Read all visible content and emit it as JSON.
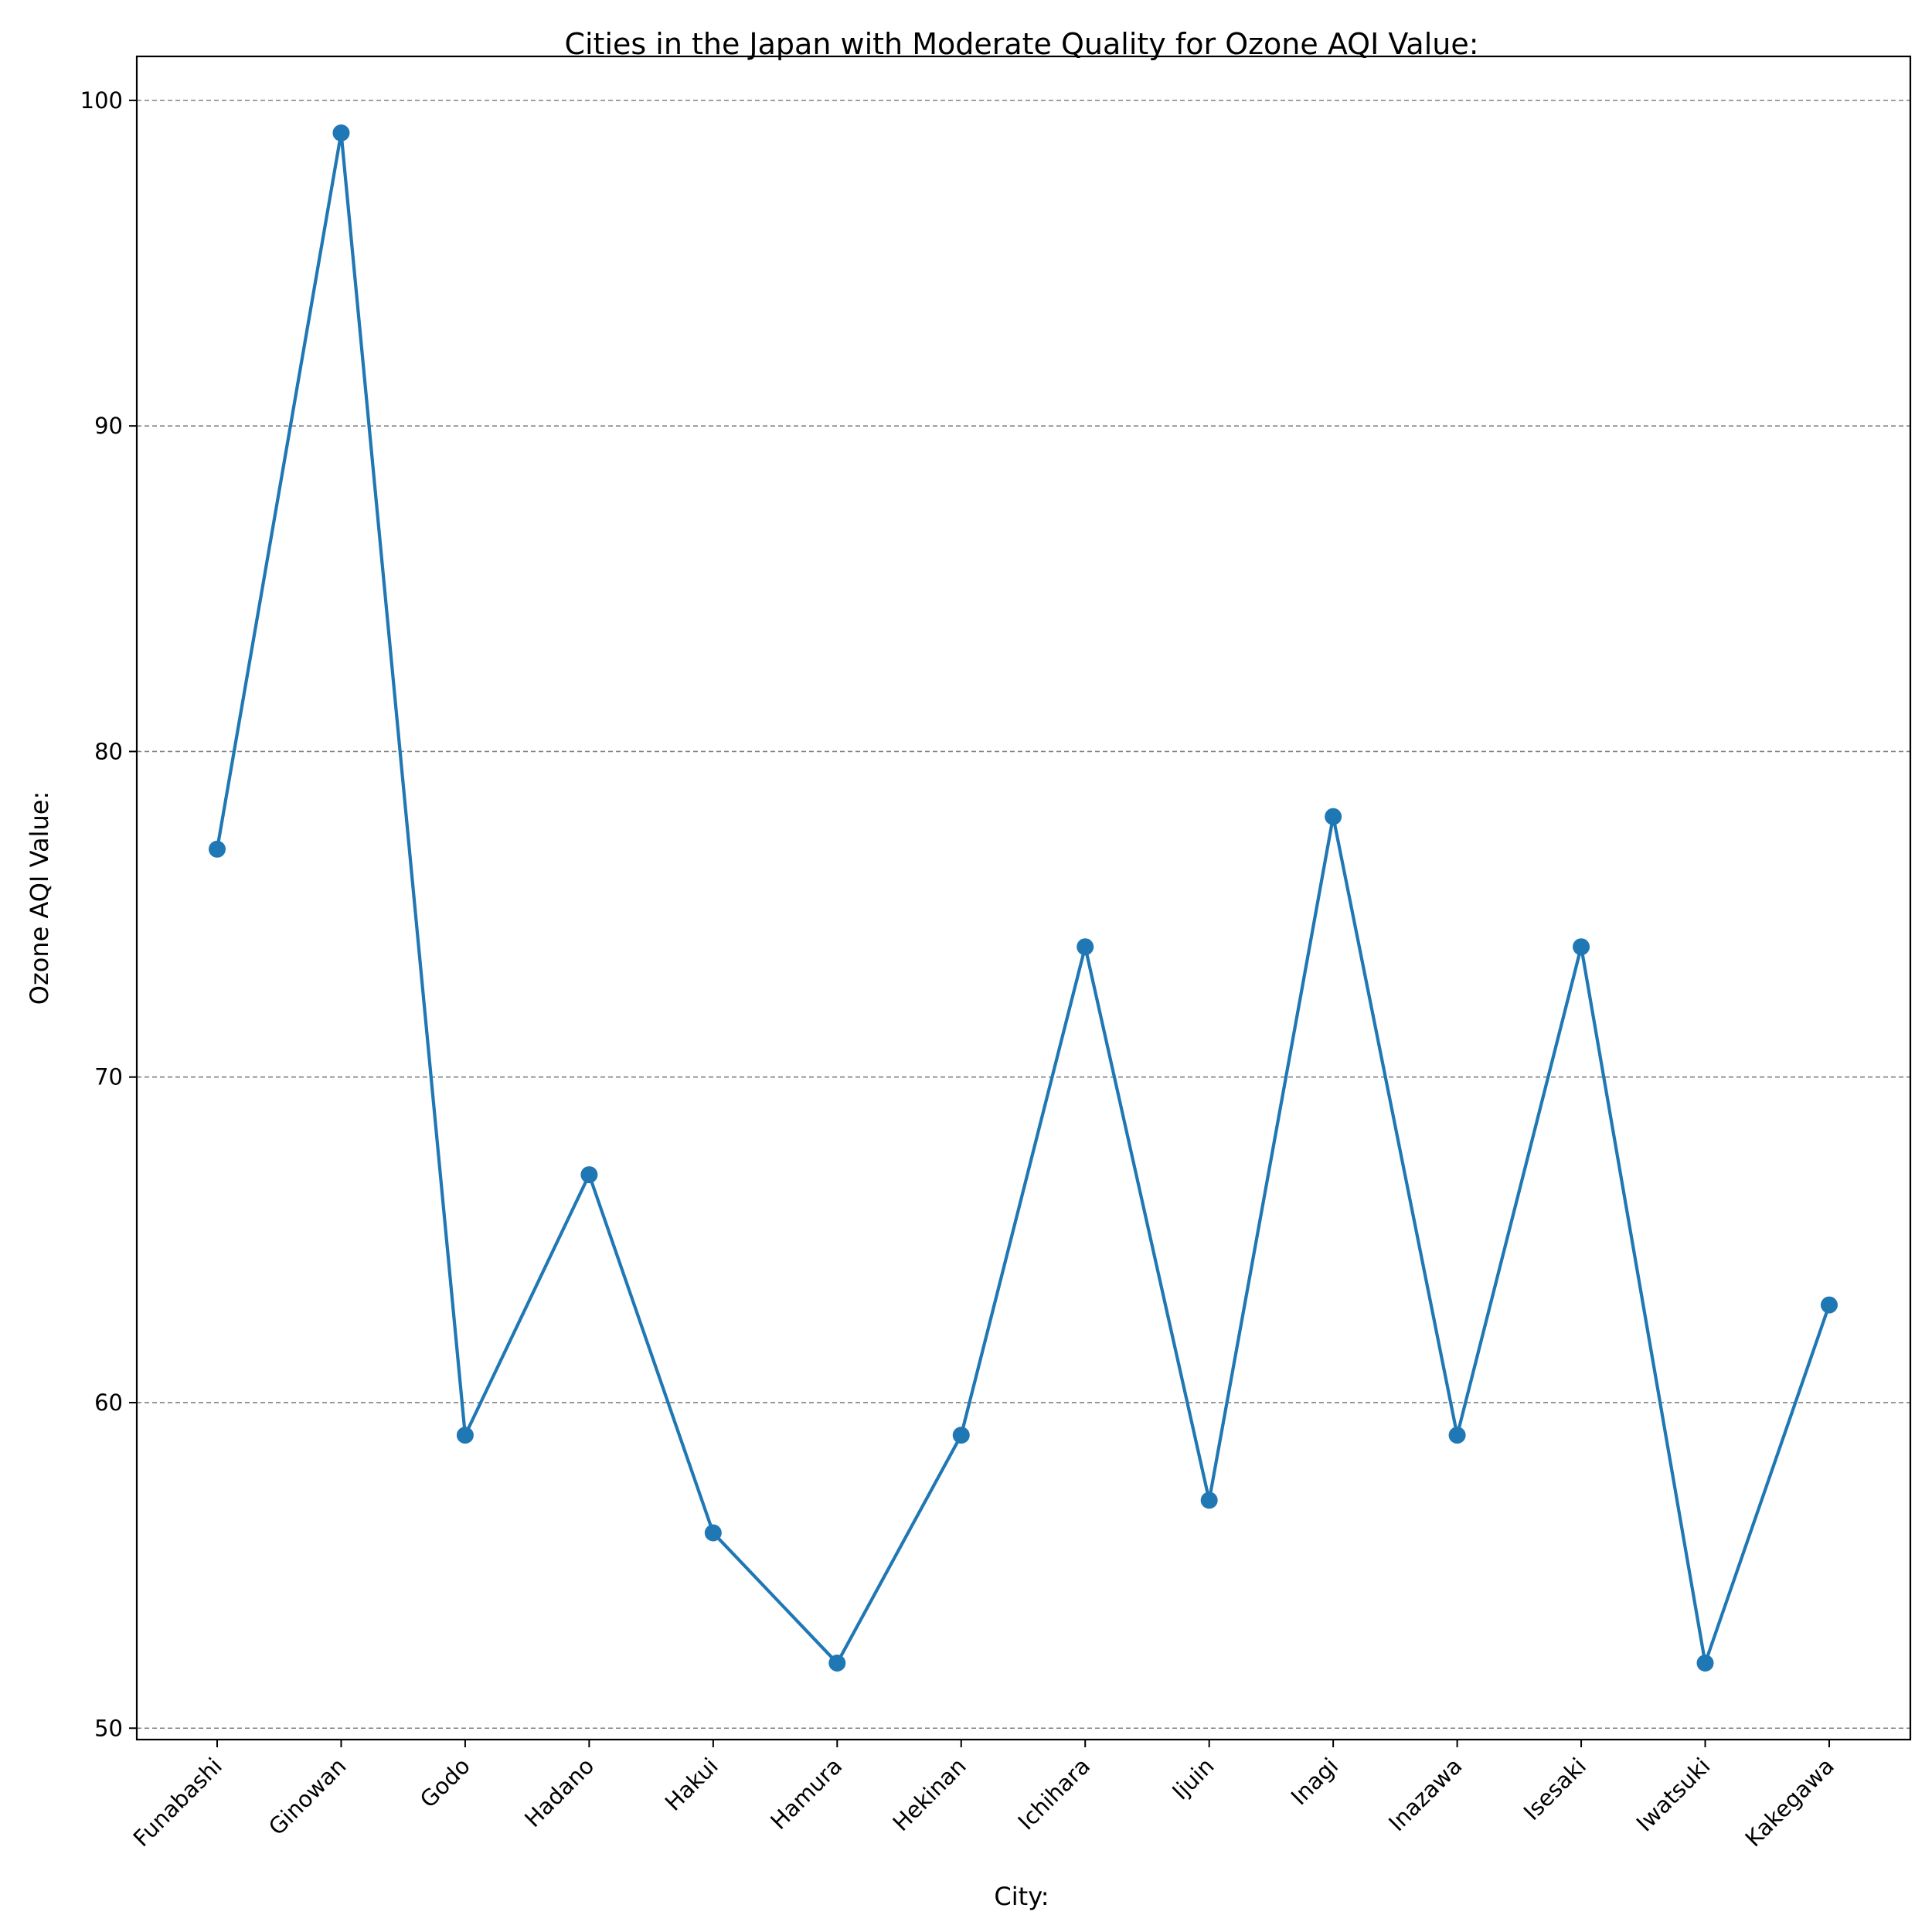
{
  "chart_data": {
    "type": "line",
    "title": "Cities in the Japan with Moderate Quality for Ozone AQI Value:",
    "xlabel": "City:",
    "ylabel": "Ozone AQI Value:",
    "categories": [
      "Funabashi",
      "Ginowan",
      "Godo",
      "Hadano",
      "Hakui",
      "Hamura",
      "Hekinan",
      "Ichihara",
      "Ijuin",
      "Inagi",
      "Inazawa",
      "Isesaki",
      "Iwatsuki",
      "Kakegawa"
    ],
    "values": [
      77,
      99,
      59,
      67,
      56,
      52,
      59,
      74,
      57,
      78,
      59,
      74,
      52,
      63
    ],
    "yticks": [
      50,
      60,
      70,
      80,
      90,
      100
    ],
    "ylim": [
      49.65,
      101.35
    ],
    "grid": "y-dashed",
    "legend": "none",
    "color": "#1f77b4"
  }
}
